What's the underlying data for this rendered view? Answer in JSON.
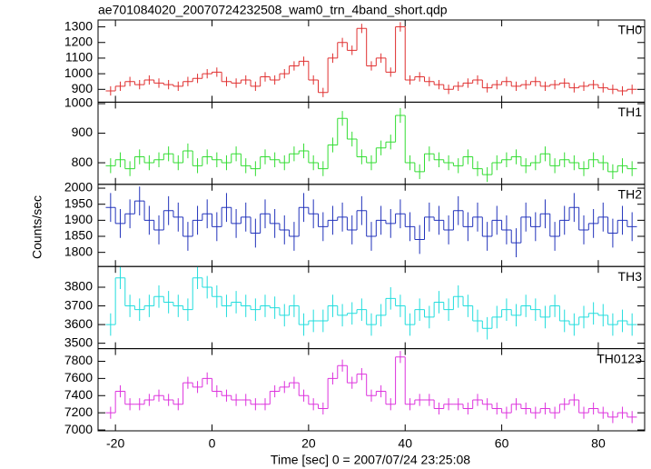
{
  "chart_data": [
    {
      "type": "line",
      "title": "ae701084020_20070724232508_wam0_trn_4band_short.qdp",
      "x": [
        -21,
        -19,
        -17,
        -15,
        -13,
        -11,
        -9,
        -7,
        -5,
        -3,
        -1,
        1,
        3,
        5,
        7,
        9,
        11,
        13,
        15,
        17,
        19,
        21,
        23,
        25,
        27,
        29,
        31,
        33,
        35,
        37,
        39,
        41,
        43,
        45,
        47,
        49,
        51,
        53,
        55,
        57,
        59,
        61,
        63,
        65,
        67,
        69,
        71,
        73,
        75,
        77,
        79,
        81,
        83,
        85,
        87
      ],
      "xlim": [
        -23.6,
        89.6
      ],
      "xticks": [
        -20,
        0,
        20,
        40,
        60,
        80
      ],
      "ylim": [
        818,
        1344
      ],
      "yticks": [
        900,
        1000,
        1100,
        1200,
        1300
      ],
      "series": [
        {
          "name": "TH0",
          "color": "#e03030",
          "error": 30,
          "values": [
            890,
            920,
            950,
            930,
            960,
            940,
            930,
            920,
            950,
            970,
            1000,
            1010,
            950,
            940,
            960,
            920,
            980,
            960,
            1000,
            1050,
            1080,
            960,
            880,
            1100,
            1200,
            1150,
            1290,
            1050,
            1100,
            1010,
            1300,
            960,
            980,
            950,
            930,
            900,
            920,
            940,
            960,
            910,
            930,
            950,
            920,
            930,
            950,
            920,
            930,
            940,
            910,
            920,
            930,
            910,
            900,
            890,
            900
          ]
        }
      ]
    },
    {
      "type": "line",
      "x": [
        -21,
        -19,
        -17,
        -15,
        -13,
        -11,
        -9,
        -7,
        -5,
        -3,
        -1,
        1,
        3,
        5,
        7,
        9,
        11,
        13,
        15,
        17,
        19,
        21,
        23,
        25,
        27,
        29,
        31,
        33,
        35,
        37,
        39,
        41,
        43,
        45,
        47,
        49,
        51,
        53,
        55,
        57,
        59,
        61,
        63,
        65,
        67,
        69,
        71,
        73,
        75,
        77,
        79,
        81,
        83,
        85,
        87
      ],
      "xlim": [
        -23.6,
        89.6
      ],
      "xticks": [
        -20,
        0,
        20,
        40,
        60,
        80
      ],
      "ylim": [
        727,
        1005
      ],
      "yticks": [
        800,
        900,
        1000
      ],
      "series": [
        {
          "name": "TH1",
          "color": "#33dd33",
          "error": 25,
          "values": [
            790,
            810,
            780,
            820,
            800,
            810,
            830,
            800,
            840,
            790,
            820,
            810,
            800,
            830,
            790,
            780,
            820,
            810,
            800,
            830,
            840,
            800,
            780,
            860,
            950,
            880,
            820,
            800,
            850,
            870,
            960,
            800,
            770,
            830,
            810,
            800,
            790,
            820,
            780,
            760,
            800,
            810,
            820,
            790,
            800,
            830,
            790,
            810,
            800,
            780,
            810,
            800,
            770,
            790,
            780
          ]
        }
      ]
    },
    {
      "type": "line",
      "ylabel": "Counts/sec",
      "x": [
        -21,
        -19,
        -17,
        -15,
        -13,
        -11,
        -9,
        -7,
        -5,
        -3,
        -1,
        1,
        3,
        5,
        7,
        9,
        11,
        13,
        15,
        17,
        19,
        21,
        23,
        25,
        27,
        29,
        31,
        33,
        35,
        37,
        39,
        41,
        43,
        45,
        47,
        49,
        51,
        53,
        55,
        57,
        59,
        61,
        63,
        65,
        67,
        69,
        71,
        73,
        75,
        77,
        79,
        81,
        83,
        85,
        87
      ],
      "xlim": [
        -23.6,
        89.6
      ],
      "xticks": [
        -20,
        0,
        20,
        40,
        60,
        80
      ],
      "ylim": [
        1756,
        2012
      ],
      "yticks": [
        1800,
        1850,
        1900,
        1950,
        2000
      ],
      "series": [
        {
          "name": "TH2",
          "color": "#2233bb",
          "error": 45,
          "values": [
            1940,
            1890,
            1920,
            1960,
            1900,
            1870,
            1930,
            1910,
            1850,
            1900,
            1920,
            1880,
            1940,
            1890,
            1910,
            1860,
            1920,
            1890,
            1870,
            1850,
            1940,
            1920,
            1880,
            1900,
            1910,
            1870,
            1930,
            1850,
            1900,
            1890,
            1920,
            1880,
            1840,
            1910,
            1900,
            1870,
            1930,
            1880,
            1910,
            1850,
            1900,
            1870,
            1830,
            1910,
            1880,
            1920,
            1850,
            1900,
            1940,
            1870,
            1890,
            1910,
            1860,
            1900,
            1880
          ]
        }
      ]
    },
    {
      "type": "line",
      "x": [
        -21,
        -19,
        -17,
        -15,
        -13,
        -11,
        -9,
        -7,
        -5,
        -3,
        -1,
        1,
        3,
        5,
        7,
        9,
        11,
        13,
        15,
        17,
        19,
        21,
        23,
        25,
        27,
        29,
        31,
        33,
        35,
        37,
        39,
        41,
        43,
        45,
        47,
        49,
        51,
        53,
        55,
        57,
        59,
        61,
        63,
        65,
        67,
        69,
        71,
        73,
        75,
        77,
        79,
        81,
        83,
        85,
        87
      ],
      "xlim": [
        -23.6,
        89.6
      ],
      "xticks": [
        -20,
        0,
        20,
        40,
        60,
        80
      ],
      "ylim": [
        3471,
        3911
      ],
      "yticks": [
        3500,
        3600,
        3700,
        3800
      ],
      "series": [
        {
          "name": "TH3",
          "color": "#22dddd",
          "error": 60,
          "values": [
            3600,
            3850,
            3700,
            3680,
            3700,
            3750,
            3720,
            3700,
            3680,
            3850,
            3800,
            3750,
            3700,
            3720,
            3700,
            3680,
            3700,
            3690,
            3650,
            3700,
            3600,
            3620,
            3620,
            3700,
            3650,
            3660,
            3680,
            3600,
            3650,
            3740,
            3700,
            3600,
            3680,
            3640,
            3720,
            3680,
            3750,
            3700,
            3620,
            3580,
            3640,
            3680,
            3650,
            3700,
            3680,
            3640,
            3700,
            3620,
            3600,
            3640,
            3660,
            3650,
            3600,
            3620,
            3600
          ]
        }
      ]
    },
    {
      "type": "line",
      "xlabel": "Time [sec] 0 = 2007/07/24 23:25:08",
      "x": [
        -21,
        -19,
        -17,
        -15,
        -13,
        -11,
        -9,
        -7,
        -5,
        -3,
        -1,
        1,
        3,
        5,
        7,
        9,
        11,
        13,
        15,
        17,
        19,
        21,
        23,
        25,
        27,
        29,
        31,
        33,
        35,
        37,
        39,
        41,
        43,
        45,
        47,
        49,
        51,
        53,
        55,
        57,
        59,
        61,
        63,
        65,
        67,
        69,
        71,
        73,
        75,
        77,
        79,
        81,
        83,
        85,
        87
      ],
      "xlim": [
        -23.6,
        89.6
      ],
      "xticks": [
        -20,
        0,
        20,
        40,
        60,
        80
      ],
      "ylim": [
        6990,
        7947
      ],
      "yticks": [
        7000,
        7200,
        7400,
        7600,
        7800
      ],
      "series": [
        {
          "name": "TH0123",
          "color": "#dd33dd",
          "error": 70,
          "values": [
            7200,
            7450,
            7300,
            7300,
            7350,
            7400,
            7350,
            7300,
            7550,
            7500,
            7600,
            7450,
            7400,
            7350,
            7350,
            7300,
            7300,
            7450,
            7500,
            7550,
            7400,
            7300,
            7250,
            7600,
            7750,
            7550,
            7650,
            7400,
            7450,
            7300,
            7850,
            7300,
            7350,
            7350,
            7250,
            7300,
            7300,
            7250,
            7350,
            7300,
            7250,
            7200,
            7300,
            7250,
            7200,
            7250,
            7200,
            7300,
            7350,
            7200,
            7250,
            7200,
            7150,
            7200,
            7150
          ]
        }
      ]
    }
  ]
}
